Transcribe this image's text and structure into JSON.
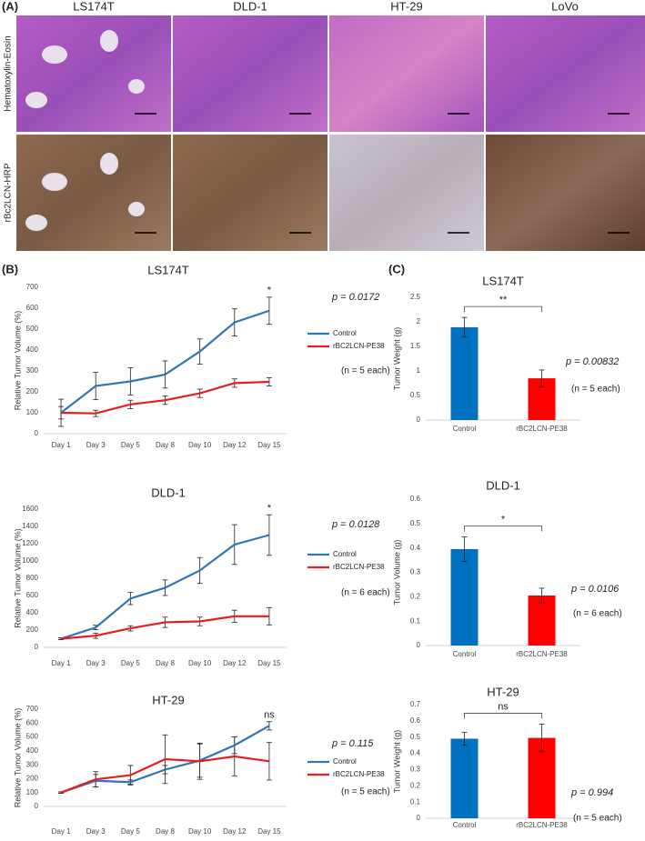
{
  "panels": {
    "a": {
      "label": "(A)",
      "columns": [
        "LS174T",
        "DLD-1",
        "HT-29",
        "LoVo"
      ],
      "rows": [
        "Hematoxylin-Eosin",
        "rBc2LCN-HRP"
      ]
    },
    "b": {
      "label": "(B)"
    },
    "c": {
      "label": "(C)"
    }
  },
  "chart_data": [
    {
      "type": "line",
      "title": "LS174T",
      "y_label": "Relative Tumor Volume (%)",
      "categories": [
        "Day 1",
        "Day 3",
        "Day 5",
        "Day 8",
        "Day 10",
        "Day 12",
        "Day 15"
      ],
      "series": [
        {
          "name": "Control",
          "color": "#2f75b5",
          "values": [
            100,
            228,
            250,
            283,
            393,
            532,
            588
          ],
          "errors": [
            65,
            65,
            65,
            65,
            60,
            65,
            65
          ]
        },
        {
          "name": "rBC2LCN-PE38",
          "color": "#e81c1c",
          "values": [
            100,
            97,
            140,
            160,
            193,
            242,
            248
          ],
          "errors": [
            30,
            15,
            20,
            20,
            20,
            20,
            20
          ]
        }
      ],
      "ylim": [
        0,
        700
      ],
      "yticks": [
        0,
        100,
        200,
        300,
        400,
        500,
        600,
        700
      ],
      "significance": "*",
      "p_value": "p = 0.0172",
      "n_note": "(n = 5 each)"
    },
    {
      "type": "line",
      "title": "DLD-1",
      "y_label": "Relative Tumor Volume (%)",
      "categories": [
        "Day 1",
        "Day 3",
        "Day 5",
        "Day 8",
        "Day 10",
        "Day 12",
        "Day 15"
      ],
      "series": [
        {
          "name": "Control",
          "color": "#2f75b5",
          "values": [
            100,
            230,
            565,
            690,
            890,
            1190,
            1300
          ],
          "errors": [
            10,
            25,
            70,
            90,
            150,
            230,
            235
          ]
        },
        {
          "name": "rBC2LCN-PE38",
          "color": "#e81c1c",
          "values": [
            100,
            135,
            220,
            290,
            300,
            360,
            360
          ],
          "errors": [
            10,
            30,
            30,
            60,
            50,
            70,
            100
          ]
        }
      ],
      "ylim": [
        0,
        1600
      ],
      "yticks": [
        0,
        200,
        400,
        600,
        800,
        1000,
        1200,
        1400,
        1600
      ],
      "significance": "*",
      "p_value": "p = 0.0128",
      "n_note": "(n = 6 each)"
    },
    {
      "type": "line",
      "title": "HT-29",
      "y_label": "Relative Tumor Volume (%)",
      "categories": [
        "Day 1",
        "Day 3",
        "Day 5",
        "Day 8",
        "Day 10",
        "Day 12",
        "Day 15"
      ],
      "series": [
        {
          "name": "Control",
          "color": "#2f75b5",
          "values": [
            100,
            185,
            175,
            265,
            330,
            440,
            580
          ],
          "errors": [
            5,
            45,
            15,
            30,
            120,
            60,
            30
          ]
        },
        {
          "name": "rBC2LCN-PE38",
          "color": "#e81c1c",
          "values": [
            100,
            195,
            225,
            340,
            325,
            360,
            325
          ],
          "errors": [
            5,
            55,
            70,
            175,
            130,
            140,
            135
          ]
        }
      ],
      "ylim": [
        0,
        700
      ],
      "yticks": [
        0,
        100,
        200,
        300,
        400,
        500,
        600,
        700
      ],
      "significance": "ns",
      "p_value": "p = 0.115",
      "n_note": "(n = 5 each)"
    },
    {
      "type": "bar",
      "title": "LS174T",
      "y_label": "Tumor Weight (g)",
      "categories": [
        "Control",
        "rBC2LCN-PE38"
      ],
      "values": [
        1.89,
        0.85
      ],
      "errors": [
        0.2,
        0.17
      ],
      "colors": [
        "#0070c0",
        "#ff0000"
      ],
      "ylim": [
        0,
        2.5
      ],
      "yticks": [
        0,
        0.5,
        1,
        1.5,
        2,
        2.5
      ],
      "significance": "**",
      "p_value": "p = 0.00832",
      "n_note": "(n = 5 each)"
    },
    {
      "type": "bar",
      "title": "DLD-1",
      "y_label": "Tumor Volume (g)",
      "categories": [
        "Control",
        "rBC2LCN-PE38"
      ],
      "values": [
        0.395,
        0.205
      ],
      "errors": [
        0.05,
        0.03
      ],
      "colors": [
        "#0070c0",
        "#ff0000"
      ],
      "ylim": [
        0,
        0.6
      ],
      "yticks": [
        0,
        0.1,
        0.2,
        0.3,
        0.4,
        0.5,
        0.6
      ],
      "significance": "*",
      "p_value": "p = 0.0106",
      "n_note": "(n = 6 each)"
    },
    {
      "type": "bar",
      "title": "HT-29",
      "y_label": "Tumor Weight (g)",
      "categories": [
        "Control",
        "rBC2LCN-PE38"
      ],
      "values": [
        0.49,
        0.495
      ],
      "errors": [
        0.04,
        0.085
      ],
      "colors": [
        "#0070c0",
        "#ff0000"
      ],
      "ylim": [
        0,
        0.7
      ],
      "yticks": [
        0,
        0.1,
        0.2,
        0.3,
        0.4,
        0.5,
        0.6,
        0.7
      ],
      "significance": "ns",
      "p_value": "p = 0.994",
      "n_note": "(n = 5 each)"
    }
  ]
}
